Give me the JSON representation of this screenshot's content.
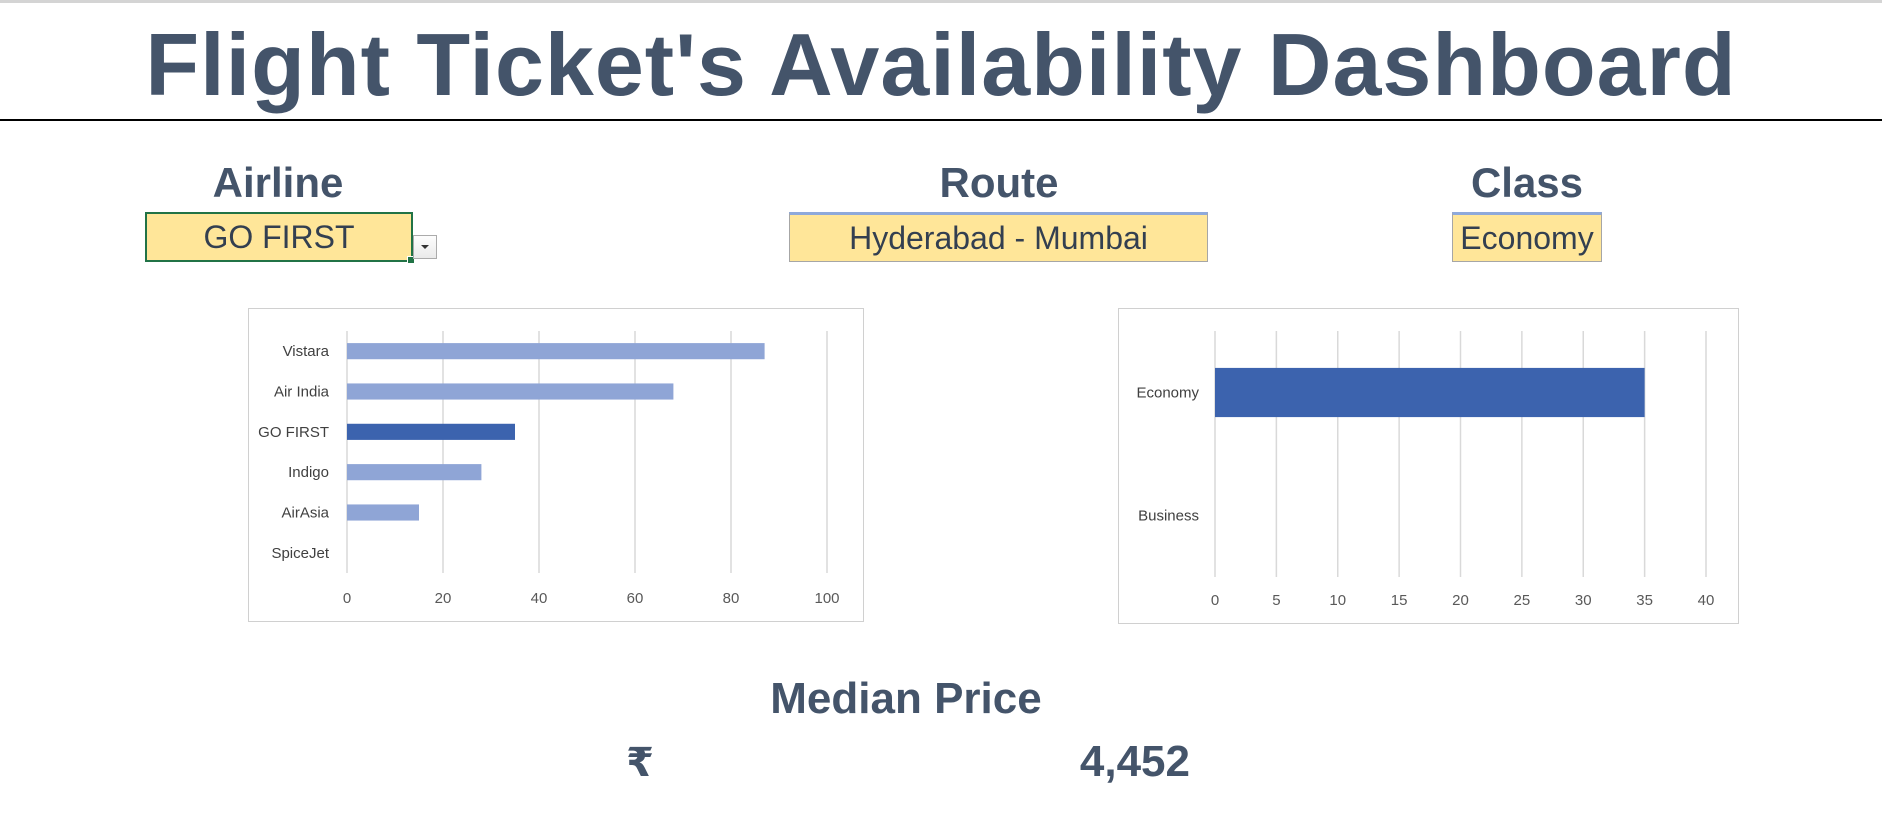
{
  "title": "Flight Ticket's Availability Dashboard",
  "filters": {
    "airline": {
      "label": "Airline",
      "value": "GO FIRST"
    },
    "route": {
      "label": "Route",
      "value": "Hyderabad - Mumbai"
    },
    "class": {
      "label": "Class",
      "value": "Economy"
    }
  },
  "colors": {
    "text": "#44546A",
    "bar_default": "#8FA5D6",
    "bar_highlight": "#3C63AE",
    "input_fill": "#FFE699",
    "gridline": "#D9D9D9"
  },
  "chart_data": [
    {
      "type": "bar",
      "orientation": "horizontal",
      "categories": [
        "Vistara",
        "Air India",
        "GO FIRST",
        "Indigo",
        "AirAsia",
        "SpiceJet"
      ],
      "values": [
        87,
        68,
        35,
        28,
        15,
        0
      ],
      "highlight": "GO FIRST",
      "xlim": [
        0,
        100
      ],
      "xticks": [
        0,
        20,
        40,
        60,
        80,
        100
      ],
      "grid": true,
      "title": "",
      "xlabel": "",
      "ylabel": ""
    },
    {
      "type": "bar",
      "orientation": "horizontal",
      "categories": [
        "Economy",
        "Business"
      ],
      "values": [
        35,
        0
      ],
      "highlight": "Economy",
      "xlim": [
        0,
        40
      ],
      "xticks": [
        0,
        5,
        10,
        15,
        20,
        25,
        30,
        35,
        40
      ],
      "grid": true,
      "title": "",
      "xlabel": "",
      "ylabel": ""
    }
  ],
  "median": {
    "label": "Median Price",
    "currency_symbol": "₹",
    "value": "4,452"
  }
}
